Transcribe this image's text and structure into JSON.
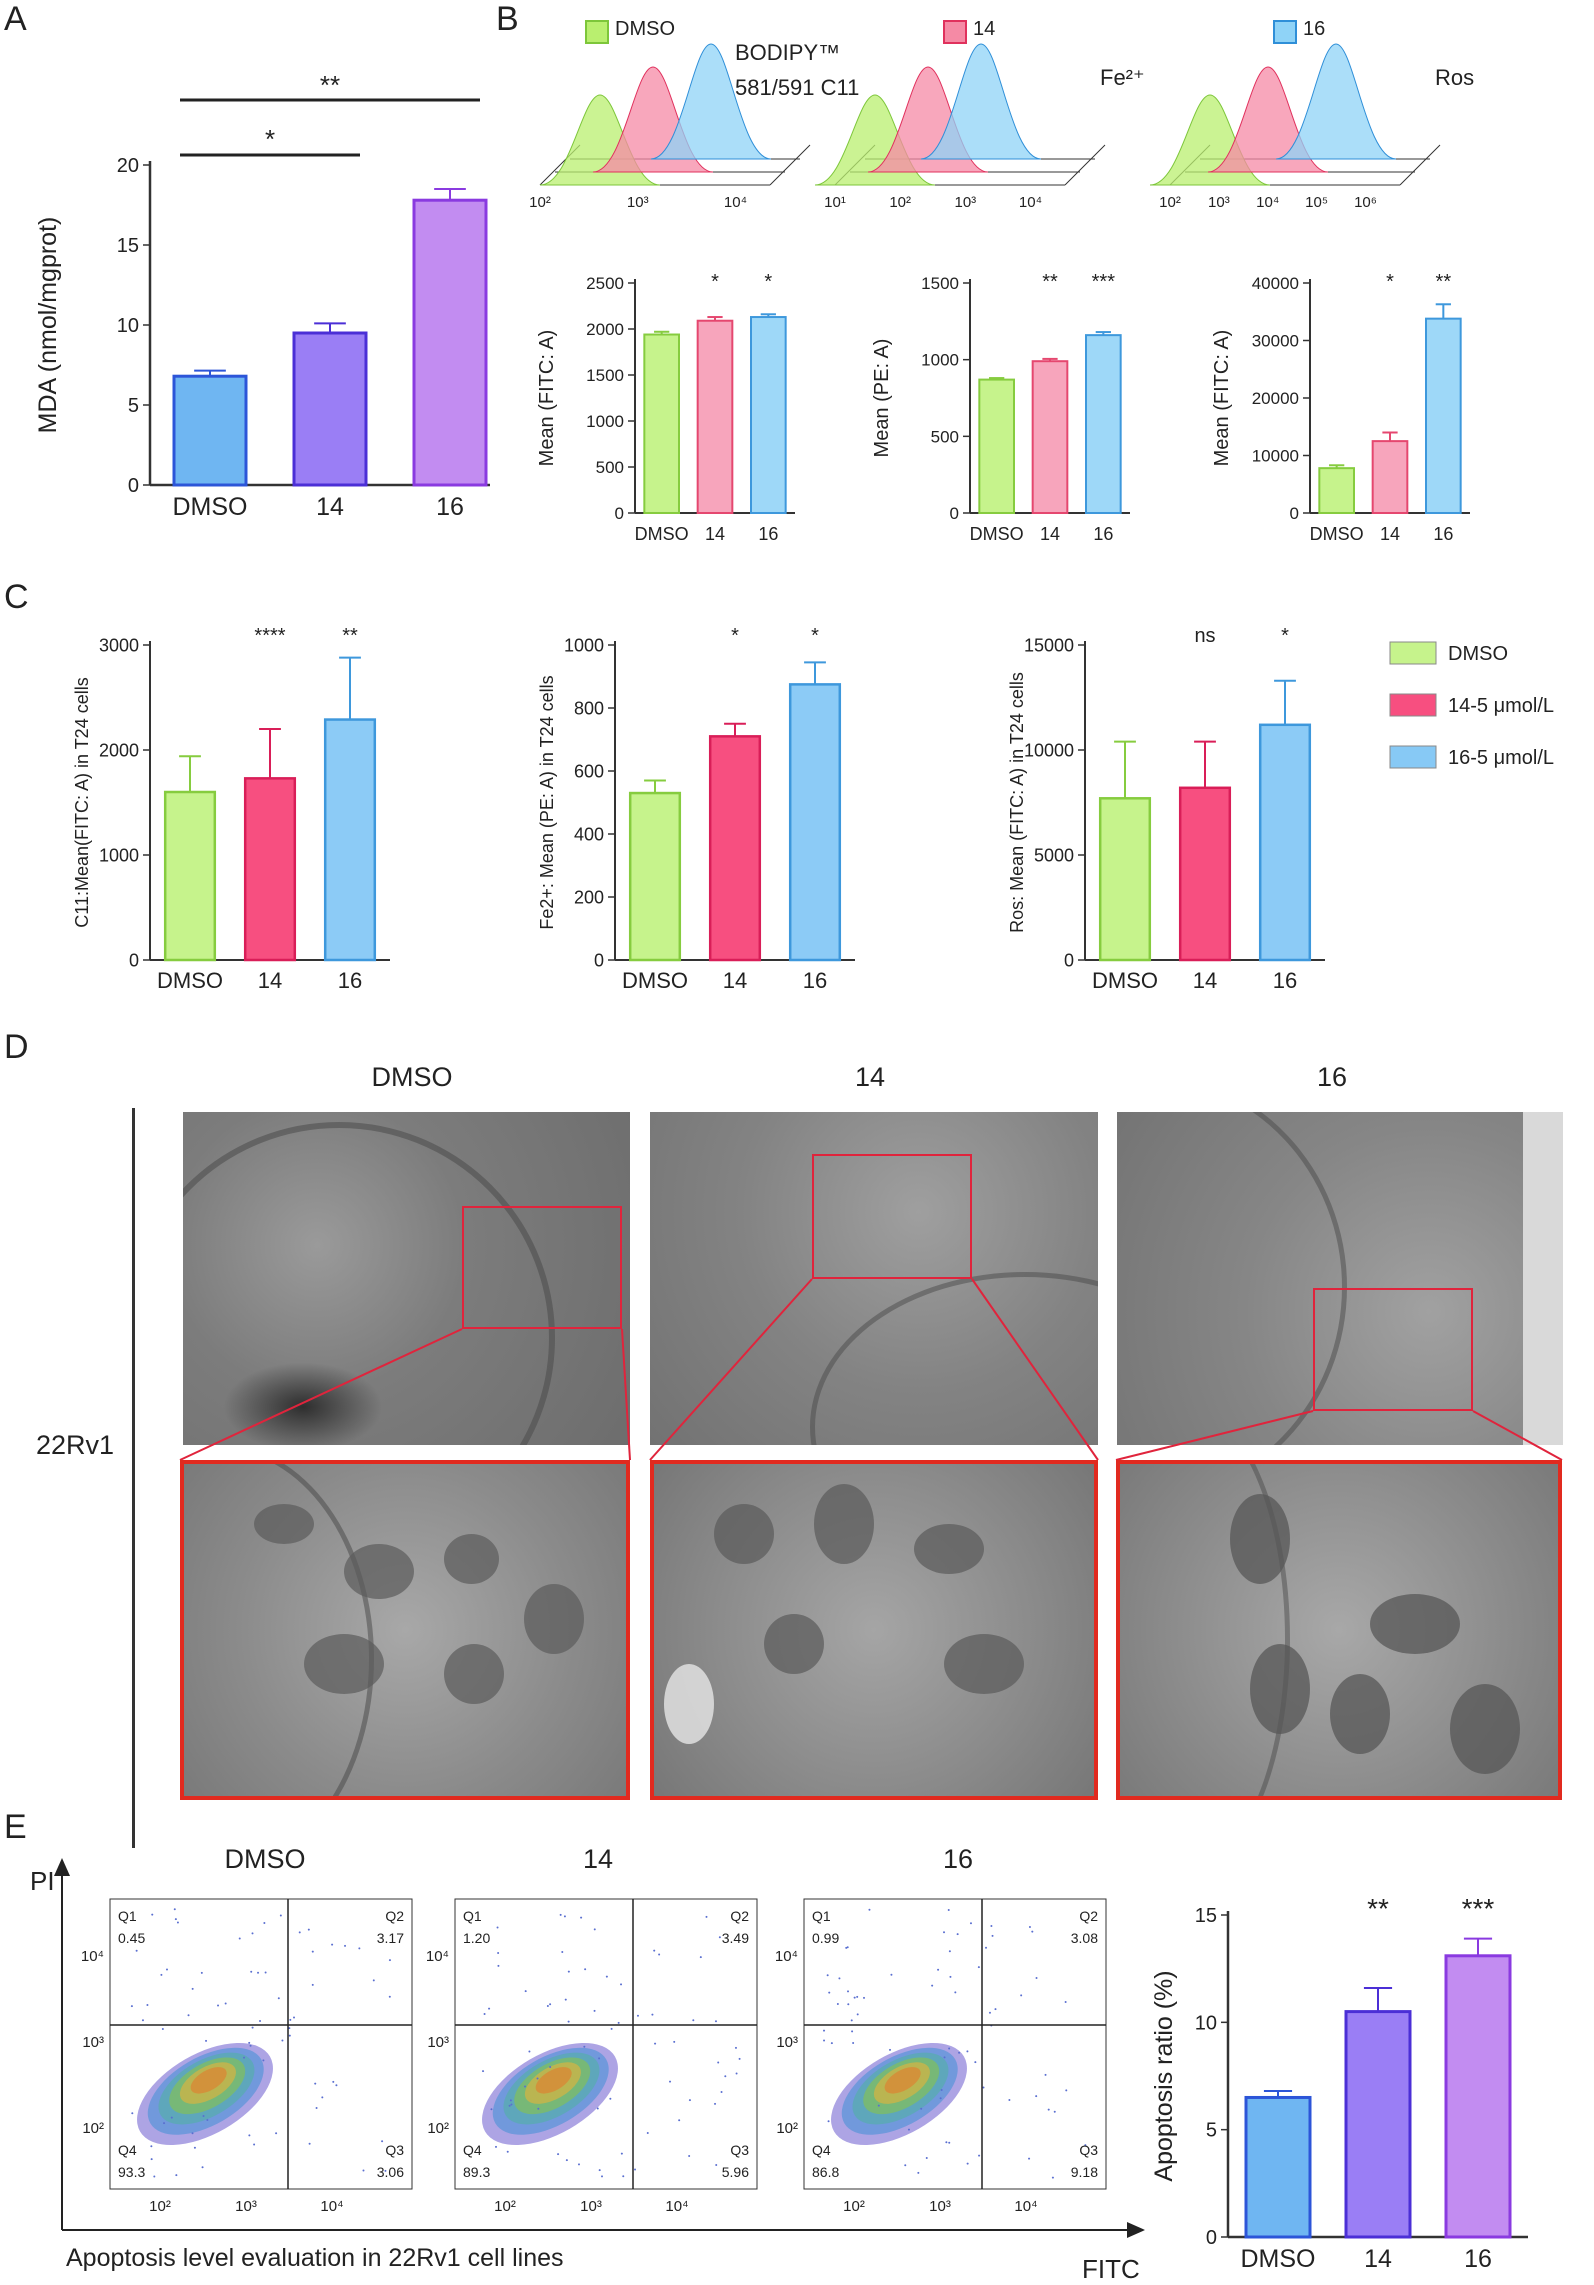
{
  "panels": {
    "A": "A",
    "B": "B",
    "C": "C",
    "D": "D",
    "E": "E"
  },
  "panelA": {
    "chart_data": {
      "type": "bar",
      "categories": [
        "DMSO",
        "14",
        "16"
      ],
      "values": [
        6.8,
        9.5,
        17.8
      ],
      "errors": [
        0.35,
        0.6,
        0.7
      ],
      "colors": [
        "#6fb6f2",
        "#9a7ef5",
        "#c28cf1"
      ],
      "edge_colors": [
        "#2c55d8",
        "#4b2fd6",
        "#8a3ae0"
      ],
      "ylabel": "MDA (nmol/mgprot)",
      "ylim": [
        0,
        20
      ],
      "yticks": [
        0,
        5,
        10,
        15,
        20
      ],
      "significance": [
        {
          "label": "*",
          "from": "DMSO",
          "to": "14"
        },
        {
          "label": "**",
          "from": "DMSO",
          "to": "16"
        }
      ]
    }
  },
  "panelB": {
    "legend": [
      {
        "label": "DMSO",
        "color": "#b9ef6f",
        "edge": "#7dc63a"
      },
      {
        "label": "14",
        "color": "#f58aa5",
        "edge": "#e0315d"
      },
      {
        "label": "16",
        "color": "#8fd3f7",
        "edge": "#2f8fd8"
      }
    ],
    "histograms": [
      {
        "label_line1": "BODIPY™",
        "label_line2": "581/591 C11",
        "ticks": [
          "10²",
          "10³",
          "10⁴"
        ]
      },
      {
        "label_line1": "Fe²⁺",
        "label_line2": "",
        "ticks": [
          "10¹",
          "10²",
          "10³",
          "10⁴"
        ]
      },
      {
        "label_line1": "Ros",
        "label_line2": "",
        "ticks": [
          "10²",
          "10³",
          "10⁴",
          "10⁵",
          "10⁶"
        ]
      }
    ],
    "bars": [
      {
        "type": "bar",
        "categories": [
          "DMSO",
          "14",
          "16"
        ],
        "values": [
          1940,
          2090,
          2130
        ],
        "errors": [
          30,
          40,
          30
        ],
        "ylabel": "Mean (FITC: A)",
        "ylim": [
          0,
          2500
        ],
        "yticks": [
          0,
          500,
          1000,
          1500,
          2000,
          2500
        ],
        "stars": [
          "",
          "*",
          "*"
        ]
      },
      {
        "type": "bar",
        "categories": [
          "DMSO",
          "14",
          "16"
        ],
        "values": [
          870,
          990,
          1160
        ],
        "errors": [
          10,
          15,
          20
        ],
        "ylabel": "Mean (PE: A)",
        "ylim": [
          0,
          1500
        ],
        "yticks": [
          0,
          500,
          1000,
          1500
        ],
        "stars": [
          "",
          "**",
          "***"
        ]
      },
      {
        "type": "bar",
        "categories": [
          "DMSO",
          "14",
          "16"
        ],
        "values": [
          7800,
          12500,
          33800
        ],
        "errors": [
          500,
          1500,
          2500
        ],
        "ylabel": "Mean (FITC: A)",
        "ylim": [
          0,
          40000
        ],
        "yticks": [
          0,
          10000,
          20000,
          30000,
          40000
        ],
        "stars": [
          "",
          "*",
          "**"
        ]
      }
    ],
    "colors": [
      "#c6f38c",
      "#f7a5bc",
      "#9ed8f8"
    ],
    "edge_colors": [
      "#86cc3f",
      "#e5476f",
      "#3e98dc"
    ]
  },
  "panelC": {
    "legend": [
      {
        "label": "DMSO",
        "color": "#c6f38c"
      },
      {
        "label": "14-5 μmol/L",
        "color": "#f74f80"
      },
      {
        "label": "16-5 μmol/L",
        "color": "#87c9f5"
      }
    ],
    "colors": [
      "#c6f38c",
      "#f74f80",
      "#8ccbf6"
    ],
    "edge_colors": [
      "#86cc3f",
      "#d91e58",
      "#3e98dc"
    ],
    "bars": [
      {
        "type": "bar",
        "categories": [
          "DMSO",
          "14",
          "16"
        ],
        "values": [
          1600,
          1730,
          2290
        ],
        "errors": [
          340,
          470,
          590
        ],
        "ylabel": "C11:Mean(FITC: A) in T24 cells",
        "ylim": [
          0,
          3000
        ],
        "yticks": [
          0,
          1000,
          2000,
          3000
        ],
        "stars": [
          "",
          "****",
          "**"
        ]
      },
      {
        "type": "bar",
        "categories": [
          "DMSO",
          "14",
          "16"
        ],
        "values": [
          530,
          710,
          875
        ],
        "errors": [
          40,
          40,
          70
        ],
        "ylabel": "Fe2+: Mean (PE: A) in T24 cells",
        "ylim": [
          0,
          1000
        ],
        "yticks": [
          0,
          200,
          400,
          600,
          800,
          1000
        ],
        "stars": [
          "",
          "*",
          "*"
        ]
      },
      {
        "type": "bar",
        "categories": [
          "DMSO",
          "14",
          "16"
        ],
        "values": [
          7700,
          8200,
          11200
        ],
        "errors": [
          2700,
          2200,
          2100
        ],
        "ylabel": "Ros: Mean (FITC: A) in T24 cells",
        "ylim": [
          0,
          15000
        ],
        "yticks": [
          0,
          5000,
          10000,
          15000
        ],
        "stars": [
          "",
          "ns",
          "*"
        ]
      }
    ]
  },
  "panelD": {
    "columns": [
      "DMSO",
      "14",
      "16"
    ],
    "row_label": "22Rv1"
  },
  "panelE": {
    "columns": [
      "DMSO",
      "14",
      "16"
    ],
    "axis_y": "PI",
    "axis_x": "FITC",
    "caption": "Apoptosis level evaluation in 22Rv1 cell lines",
    "flow_ticks_y": [
      "10⁴",
      "10³",
      "10²"
    ],
    "flow_ticks_x": [
      "10²",
      "10³",
      "10⁴"
    ],
    "quadrants": [
      {
        "Q1": "0.45",
        "Q2": "3.17",
        "Q3": "3.06",
        "Q4": "93.3"
      },
      {
        "Q1": "1.20",
        "Q2": "3.49",
        "Q3": "5.96",
        "Q4": "89.3"
      },
      {
        "Q1": "0.99",
        "Q2": "3.08",
        "Q3": "9.18",
        "Q4": "86.8"
      }
    ],
    "quadrant_names": [
      "Q1",
      "Q2",
      "Q3",
      "Q4"
    ],
    "chart_data": {
      "type": "bar",
      "categories": [
        "DMSO",
        "14",
        "16"
      ],
      "values": [
        6.5,
        10.5,
        13.1
      ],
      "errors": [
        0.3,
        1.1,
        0.8
      ],
      "colors": [
        "#6fb6f2",
        "#9a7ef5",
        "#c28cf1"
      ],
      "edge_colors": [
        "#2c55d8",
        "#4b2fd6",
        "#8a3ae0"
      ],
      "ylabel": "Apoptosis ratio (%)",
      "ylim": [
        0,
        15
      ],
      "yticks": [
        0,
        5,
        10,
        15
      ],
      "stars": [
        "",
        "**",
        "***"
      ]
    }
  }
}
